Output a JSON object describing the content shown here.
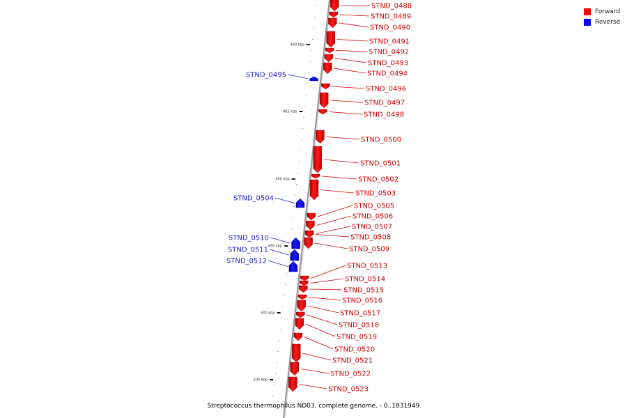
{
  "colors": {
    "forward": "#ff0000",
    "reverse": "#0000ff",
    "backbone": "#9a9a9a"
  },
  "legend": [
    {
      "label": "Forward",
      "strand": "forward"
    },
    {
      "label": "Reverse",
      "strand": "reverse"
    }
  ],
  "footer": "Streptococcus thermophilus ND03, complete genome. - 0..1831949",
  "ticks": [
    "480 kbp",
    "485 kbp",
    "490 kbp",
    "495 kbp",
    "500 kbp",
    "505 kbp"
  ],
  "genes": [
    {
      "name": "STND_0488",
      "strand": "forward"
    },
    {
      "name": "STND_0489",
      "strand": "forward"
    },
    {
      "name": "STND_0490",
      "strand": "forward"
    },
    {
      "name": "STND_0491",
      "strand": "forward"
    },
    {
      "name": "STND_0492",
      "strand": "forward"
    },
    {
      "name": "STND_0493",
      "strand": "forward"
    },
    {
      "name": "STND_0494",
      "strand": "forward"
    },
    {
      "name": "STND_0495",
      "strand": "reverse"
    },
    {
      "name": "STND_0496",
      "strand": "forward"
    },
    {
      "name": "STND_0497",
      "strand": "forward"
    },
    {
      "name": "STND_0498",
      "strand": "forward"
    },
    {
      "name": "STND_0500",
      "strand": "forward"
    },
    {
      "name": "STND_0501",
      "strand": "forward"
    },
    {
      "name": "STND_0502",
      "strand": "forward"
    },
    {
      "name": "STND_0503",
      "strand": "forward"
    },
    {
      "name": "STND_0504",
      "strand": "reverse"
    },
    {
      "name": "STND_0505",
      "strand": "forward"
    },
    {
      "name": "STND_0506",
      "strand": "forward"
    },
    {
      "name": "STND_0507",
      "strand": "forward"
    },
    {
      "name": "STND_0508",
      "strand": "forward"
    },
    {
      "name": "STND_0509",
      "strand": "forward"
    },
    {
      "name": "STND_0510",
      "strand": "reverse"
    },
    {
      "name": "STND_0511",
      "strand": "reverse"
    },
    {
      "name": "STND_0512",
      "strand": "reverse"
    },
    {
      "name": "STND_0513",
      "strand": "forward"
    },
    {
      "name": "STND_0514",
      "strand": "forward"
    },
    {
      "name": "STND_0515",
      "strand": "forward"
    },
    {
      "name": "STND_0516",
      "strand": "forward"
    },
    {
      "name": "STND_0517",
      "strand": "forward"
    },
    {
      "name": "STND_0518",
      "strand": "forward"
    },
    {
      "name": "STND_0519",
      "strand": "forward"
    },
    {
      "name": "STND_0520",
      "strand": "forward"
    },
    {
      "name": "STND_0521",
      "strand": "forward"
    },
    {
      "name": "STND_0522",
      "strand": "forward"
    },
    {
      "name": "STND_0523",
      "strand": "forward"
    }
  ]
}
